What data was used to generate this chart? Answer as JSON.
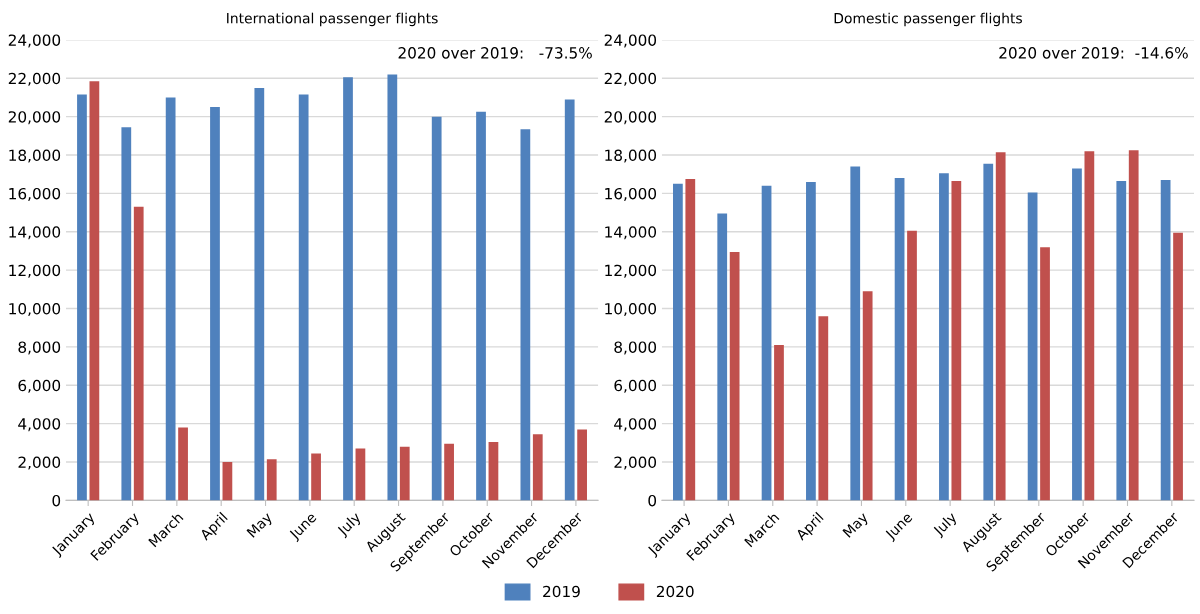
{
  "chart_data": [
    {
      "type": "bar",
      "title": "International passenger flights",
      "categories": [
        "January",
        "February",
        "March",
        "April",
        "May",
        "June",
        "July",
        "August",
        "September",
        "October",
        "November",
        "December"
      ],
      "series": [
        {
          "name": "2019",
          "color": "#4f81bd",
          "values": [
            21150,
            19450,
            21000,
            20500,
            21500,
            21150,
            22050,
            22200,
            20000,
            20250,
            19350,
            20900
          ]
        },
        {
          "name": "2020",
          "color": "#c0504d",
          "values": [
            21850,
            15300,
            3800,
            2000,
            2150,
            2450,
            2700,
            2800,
            2950,
            3050,
            3450,
            3700
          ]
        }
      ],
      "ylim": [
        0,
        24000
      ],
      "yticks": [
        {
          "value": 0,
          "label": "0"
        },
        {
          "value": 2000,
          "label": "2,000"
        },
        {
          "value": 4000,
          "label": "4,000"
        },
        {
          "value": 6000,
          "label": "6,000"
        },
        {
          "value": 8000,
          "label": "8,000"
        },
        {
          "value": 10000,
          "label": "10,000"
        },
        {
          "value": 12000,
          "label": "12,000"
        },
        {
          "value": 14000,
          "label": "14,000"
        },
        {
          "value": 16000,
          "label": "16,000"
        },
        {
          "value": 18000,
          "label": "18,000"
        },
        {
          "value": 20000,
          "label": "20,000"
        },
        {
          "value": 22000,
          "label": "22,000"
        },
        {
          "value": 24000,
          "label": "24,000"
        }
      ],
      "grid": "y",
      "legend": "bottom",
      "annotations": [
        "2020 over 2019:   -73.5%"
      ]
    },
    {
      "type": "bar",
      "title": "Domestic passenger flights",
      "categories": [
        "January",
        "February",
        "March",
        "April",
        "May",
        "June",
        "July",
        "August",
        "September",
        "October",
        "November",
        "December"
      ],
      "series": [
        {
          "name": "2019",
          "color": "#4f81bd",
          "values": [
            16500,
            14950,
            16400,
            16600,
            17400,
            16800,
            17050,
            17550,
            16050,
            17300,
            16650,
            16700
          ]
        },
        {
          "name": "2020",
          "color": "#c0504d",
          "values": [
            16750,
            12950,
            8100,
            9600,
            10900,
            14050,
            16650,
            18150,
            13200,
            18200,
            18250,
            13950
          ]
        }
      ],
      "ylim": [
        0,
        24000
      ],
      "yticks": [
        {
          "value": 0,
          "label": "0"
        },
        {
          "value": 2000,
          "label": "2,000"
        },
        {
          "value": 4000,
          "label": "4,000"
        },
        {
          "value": 6000,
          "label": "6,000"
        },
        {
          "value": 8000,
          "label": "8,000"
        },
        {
          "value": 10000,
          "label": "10,000"
        },
        {
          "value": 12000,
          "label": "12,000"
        },
        {
          "value": 14000,
          "label": "14,000"
        },
        {
          "value": 16000,
          "label": "16,000"
        },
        {
          "value": 18000,
          "label": "18,000"
        },
        {
          "value": 20000,
          "label": "20,000"
        },
        {
          "value": 22000,
          "label": "22,000"
        },
        {
          "value": 24000,
          "label": "24,000"
        }
      ],
      "grid": "y",
      "annotations": [
        "2020 over 2019:  -14.6%"
      ]
    }
  ]
}
